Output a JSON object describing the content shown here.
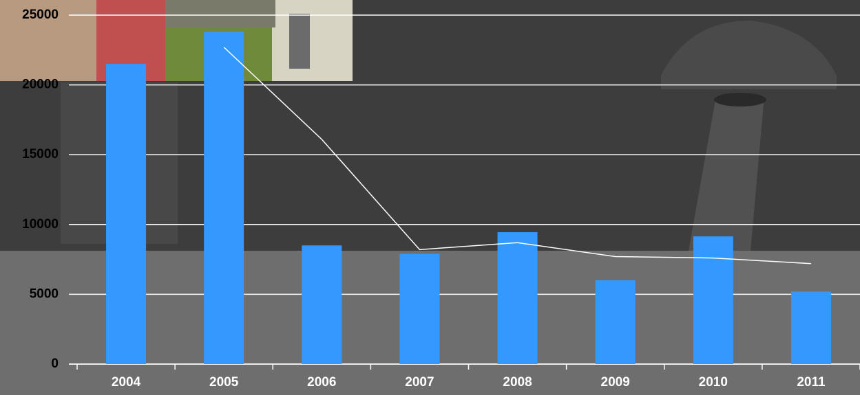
{
  "chart_data": {
    "type": "bar",
    "categories": [
      "2004",
      "2005",
      "2006",
      "2007",
      "2008",
      "2009",
      "2010",
      "2011"
    ],
    "series": [
      {
        "type": "bar",
        "color": "#3399ff",
        "values": [
          21500,
          23800,
          8500,
          7900,
          9450,
          6000,
          9150,
          5200
        ]
      },
      {
        "type": "line",
        "color": "#ffffff",
        "values": [
          null,
          22700,
          16100,
          8200,
          8700,
          7700,
          7600,
          7200
        ]
      }
    ],
    "ylim": [
      0,
      25000
    ],
    "yticks": [
      0,
      5000,
      10000,
      15000,
      20000,
      25000
    ],
    "grid": true
  }
}
